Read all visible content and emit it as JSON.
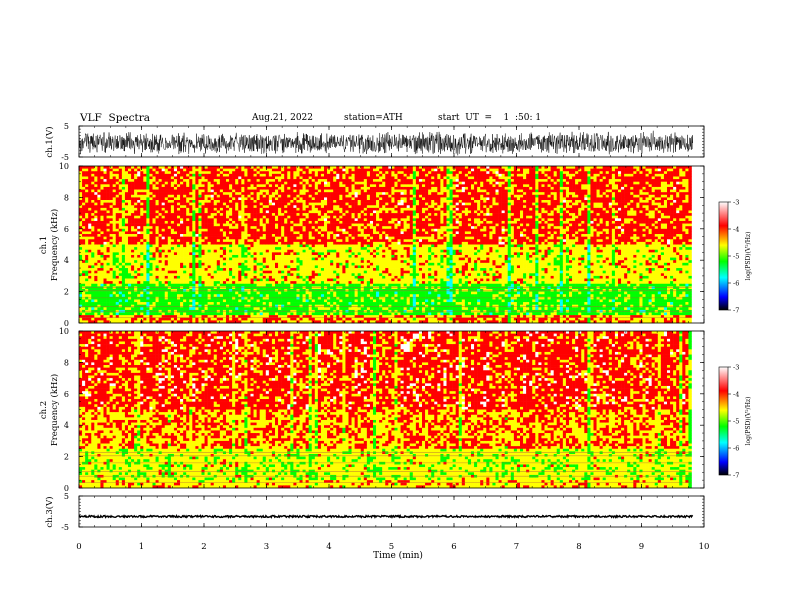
{
  "header": {
    "title": "VLF  Spectra",
    "date": "Aug.21, 2022",
    "station": "station=ATH",
    "start_ut": "start  UT  =    1  :50: 1"
  },
  "colors": {
    "spectrogram_palette": [
      "#000000",
      "#0000ff",
      "#00ffff",
      "#00ff00",
      "#ffff00",
      "#ff0000",
      "#ffffff"
    ],
    "waveform": "#000000"
  },
  "chart_data": [
    {
      "type": "line",
      "name": "waveform-ch1",
      "ylabel": "ch.1(V)",
      "ylim": [
        -5,
        5
      ],
      "yticks": [
        "5",
        "-5"
      ],
      "xlim": [
        0,
        10
      ],
      "description_values": {
        "amplitude_band_v": [
          -4,
          4
        ],
        "center_v": -0.5
      }
    },
    {
      "type": "heatmap",
      "name": "spectrogram-ch1",
      "ylabel_line1": "ch.1",
      "ylabel_line2": "Frequency (kHz)",
      "ylim": [
        0,
        10
      ],
      "yticks": [
        "0",
        "2",
        "4",
        "6",
        "8",
        "10"
      ],
      "xlim": [
        0,
        9.8
      ],
      "dominant_level_by_band_khz": [
        {
          "from": 0,
          "to": 0.5,
          "log_psd": -4.0
        },
        {
          "from": 0.5,
          "to": 2.5,
          "log_psd": -4.9
        },
        {
          "from": 2.5,
          "to": 5,
          "log_psd": -4.3
        },
        {
          "from": 5,
          "to": 10,
          "log_psd": -3.8
        }
      ],
      "colorbar": {
        "label": "log(PSD)(V²/Hz)",
        "range": [
          -7,
          -3
        ],
        "ticks": [
          "-3",
          "-4",
          "-5",
          "-6",
          "-7"
        ]
      }
    },
    {
      "type": "heatmap",
      "name": "spectrogram-ch2",
      "ylabel_line1": "ch.2",
      "ylabel_line2": "Frequency (kHz)",
      "ylim": [
        0,
        10
      ],
      "yticks": [
        "0",
        "2",
        "4",
        "6",
        "8",
        "10"
      ],
      "xlim": [
        0,
        9.8
      ],
      "dominant_level_by_band_khz": [
        {
          "from": 0,
          "to": 0.5,
          "log_psd": -4.2
        },
        {
          "from": 0.5,
          "to": 2.5,
          "log_psd": -4.4
        },
        {
          "from": 2.5,
          "to": 5,
          "log_psd": -4.0
        },
        {
          "from": 5,
          "to": 10,
          "log_psd": -3.7
        }
      ],
      "colorbar": {
        "label": "log(PSD)(V²/Hz)",
        "range": [
          -7,
          -3
        ],
        "ticks": [
          "-3",
          "-4",
          "-5",
          "-6",
          "-7"
        ]
      }
    },
    {
      "type": "line",
      "name": "waveform-ch3",
      "ylabel": "ch.3(V)",
      "ylim": [
        -5,
        5
      ],
      "yticks": [
        "5",
        "-5"
      ],
      "xlim": [
        0,
        10
      ],
      "description_values": {
        "amplitude_band_v": [
          -0.3,
          0.3
        ],
        "center_v": -1.6
      }
    }
  ],
  "xaxis": {
    "label": "Time  (min)",
    "ticks": [
      "0",
      "1",
      "2",
      "3",
      "4",
      "5",
      "6",
      "7",
      "8",
      "9",
      "10"
    ],
    "range": [
      0,
      10
    ]
  }
}
